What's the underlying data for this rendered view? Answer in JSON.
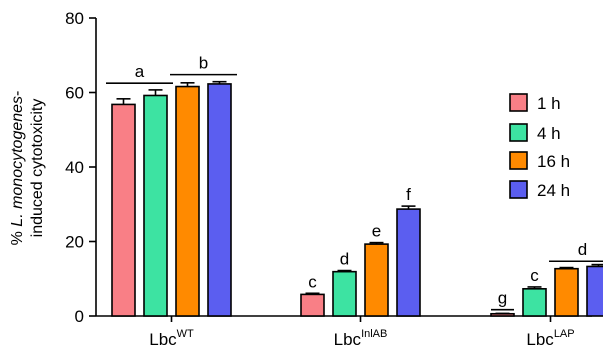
{
  "chart_data": {
    "type": "bar",
    "ylabel_line1_prefix": "% ",
    "ylabel_line1_italic": "L. monocytogenes",
    "ylabel_line1_suffix": "-",
    "ylabel_line2": "induced cytotoxicity",
    "ylim": [
      0,
      80
    ],
    "yticks": [
      "0",
      "20",
      "40",
      "60",
      "80"
    ],
    "categories": [
      {
        "base": "Lbc",
        "sup": "WT"
      },
      {
        "base": "Lbc",
        "sup": "InlAB"
      },
      {
        "base": "Lbc",
        "sup": "LAP"
      }
    ],
    "series": [
      {
        "name": "1 h",
        "color": "#f97f86",
        "values": [
          56.8,
          5.8,
          0.6
        ],
        "errors": [
          1.5,
          0.3,
          0.1
        ]
      },
      {
        "name": "4 h",
        "color": "#3de3a2",
        "values": [
          59.2,
          11.9,
          7.3
        ],
        "errors": [
          1.5,
          0.3,
          0.5
        ]
      },
      {
        "name": "16 h",
        "color": "#ff8a00",
        "values": [
          61.6,
          19.3,
          12.7
        ],
        "errors": [
          1.0,
          0.4,
          0.3
        ]
      },
      {
        "name": "24 h",
        "color": "#5b5ef0",
        "values": [
          62.3,
          28.7,
          13.3
        ],
        "errors": [
          0.6,
          0.8,
          0.5
        ]
      }
    ],
    "annotations": [
      {
        "label": "a",
        "category": 0,
        "from_series": 0,
        "to_series": 1,
        "y": 62.5
      },
      {
        "label": "b",
        "category": 0,
        "from_series": 2,
        "to_series": 3,
        "y": 64.8
      },
      {
        "label": "c",
        "category": 1,
        "from_series": 0,
        "to_series": 0,
        "y": null
      },
      {
        "label": "d",
        "category": 1,
        "from_series": 1,
        "to_series": 1,
        "y": null
      },
      {
        "label": "e",
        "category": 1,
        "from_series": 2,
        "to_series": 2,
        "y": null
      },
      {
        "label": "f",
        "category": 1,
        "from_series": 3,
        "to_series": 3,
        "y": null
      },
      {
        "label": "g",
        "category": 2,
        "from_series": 0,
        "to_series": 0,
        "y": 1.7
      },
      {
        "label": "c",
        "category": 2,
        "from_series": 1,
        "to_series": 1,
        "y": null
      },
      {
        "label": "d",
        "category": 2,
        "from_series": 2,
        "to_series": 3,
        "y": 14.7
      }
    ],
    "legend_position": "right",
    "grid": false
  }
}
